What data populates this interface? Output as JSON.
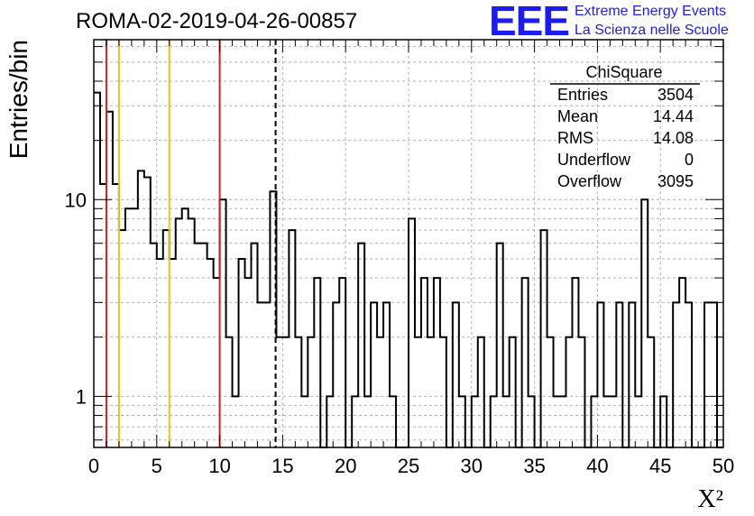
{
  "header": {
    "title": "ROMA-02-2019-04-26-00857",
    "logo": "EEE",
    "logo_line1": "Extreme Energy Events",
    "logo_line2": "La Scienza nelle Scuole"
  },
  "stats": {
    "title": "ChiSquare",
    "rows": [
      {
        "label": "Entries",
        "value": "3504"
      },
      {
        "label": "Mean",
        "value": "14.44"
      },
      {
        "label": "RMS",
        "value": "14.08"
      },
      {
        "label": "Underflow",
        "value": "0"
      },
      {
        "label": "Overflow",
        "value": "3095"
      }
    ]
  },
  "chart_data": {
    "type": "histogram",
    "title": "ROMA-02-2019-04-26-00857",
    "xlabel": "X²",
    "ylabel": "Entries/bin",
    "xlim": [
      0,
      50
    ],
    "ylim": [
      0.55,
      65
    ],
    "yscale": "log",
    "grid": true,
    "bin_width": 0.5,
    "x_ticks": [
      "0",
      "5",
      "10",
      "15",
      "20",
      "25",
      "30",
      "35",
      "40",
      "45",
      "50"
    ],
    "y_ticks": [
      "1",
      "10"
    ],
    "values": [
      35,
      12,
      28,
      12,
      7,
      9,
      9,
      14,
      13,
      6,
      5,
      7,
      5,
      8,
      9,
      8,
      6,
      6,
      5,
      4,
      10,
      2,
      1,
      5,
      4,
      6,
      3,
      3,
      11,
      2,
      2,
      7,
      2,
      1,
      2,
      4,
      0,
      1,
      3,
      4,
      0,
      1,
      6,
      1,
      3,
      2,
      3,
      1,
      0,
      0,
      8,
      2,
      4,
      2,
      4,
      2,
      0,
      3,
      1,
      0,
      1,
      2,
      0,
      1,
      6,
      1,
      2,
      0,
      4,
      1,
      0,
      7,
      2,
      1,
      1,
      2,
      4,
      2,
      0,
      1,
      3,
      1,
      1,
      3,
      0,
      3,
      1,
      10,
      2,
      0,
      1,
      0,
      3,
      4,
      3,
      0,
      0,
      3,
      3,
      0
    ],
    "vertical_lines": [
      {
        "x": 1,
        "color": "#dd1f1f",
        "style": "solid"
      },
      {
        "x": 2,
        "color": "#f0c020",
        "style": "solid"
      },
      {
        "x": 6,
        "color": "#f0c020",
        "style": "solid"
      },
      {
        "x": 10,
        "color": "#dd1f1f",
        "style": "solid"
      },
      {
        "x": 14.44,
        "color": "#000000",
        "style": "dashed"
      }
    ],
    "legend": "top-right stats box"
  }
}
